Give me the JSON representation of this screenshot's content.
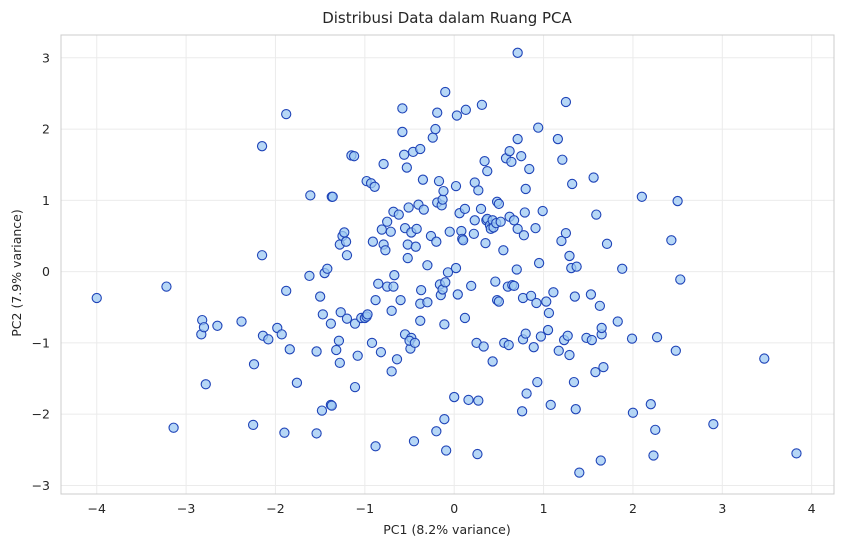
{
  "chart_data": {
    "type": "scatter",
    "title": "Distribusi Data dalam Ruang PCA",
    "xlabel": "PC1 (8.2% variance)",
    "ylabel": "PC2 (7.9% variance)",
    "xlim": [
      -4.4,
      4.25
    ],
    "ylim": [
      -3.12,
      3.32
    ],
    "xticks": [
      -4,
      -3,
      -2,
      -1,
      0,
      1,
      2,
      3,
      4
    ],
    "yticks": [
      -3,
      -2,
      -1,
      0,
      1,
      2,
      3
    ],
    "grid": true,
    "colors": {
      "marker_fill": "#9ec9f3",
      "marker_edge": "#1f44b8",
      "grid": "#ebebeb",
      "spine": "#cccccc"
    },
    "points": [
      [
        -4.0,
        -0.37
      ],
      [
        -3.22,
        -0.21
      ],
      [
        -3.14,
        -2.19
      ],
      [
        -2.82,
        -0.68
      ],
      [
        -2.83,
        -0.88
      ],
      [
        -2.8,
        -0.78
      ],
      [
        -2.78,
        -1.58
      ],
      [
        -2.65,
        -0.76
      ],
      [
        -2.38,
        -0.7
      ],
      [
        -2.24,
        -1.3
      ],
      [
        -2.25,
        -2.15
      ],
      [
        -2.14,
        -0.9
      ],
      [
        -2.15,
        0.23
      ],
      [
        -2.15,
        1.76
      ],
      [
        -2.08,
        -0.95
      ],
      [
        -1.98,
        -0.79
      ],
      [
        -1.93,
        -0.88
      ],
      [
        -1.88,
        -0.27
      ],
      [
        -1.9,
        -2.26
      ],
      [
        -1.88,
        2.21
      ],
      [
        -1.84,
        -1.09
      ],
      [
        -1.76,
        -1.56
      ],
      [
        -1.62,
        -0.06
      ],
      [
        -1.61,
        1.07
      ],
      [
        -1.54,
        -1.12
      ],
      [
        -1.54,
        -2.27
      ],
      [
        -1.5,
        -0.35
      ],
      [
        -1.48,
        -1.95
      ],
      [
        -1.47,
        -0.6
      ],
      [
        -1.45,
        -0.02
      ],
      [
        -1.42,
        0.04
      ],
      [
        -1.38,
        -1.87
      ],
      [
        -1.38,
        -0.73
      ],
      [
        -1.37,
        -1.88
      ],
      [
        -1.37,
        1.05
      ],
      [
        -1.36,
        1.05
      ],
      [
        -1.32,
        -1.1
      ],
      [
        -1.29,
        -0.97
      ],
      [
        -1.28,
        -1.28
      ],
      [
        -1.27,
        -0.57
      ],
      [
        -1.28,
        0.38
      ],
      [
        -1.25,
        0.5
      ],
      [
        -1.23,
        0.55
      ],
      [
        -1.21,
        0.42
      ],
      [
        -1.2,
        0.23
      ],
      [
        -1.2,
        -0.66
      ],
      [
        -1.15,
        1.63
      ],
      [
        -1.12,
        1.62
      ],
      [
        -1.11,
        -0.73
      ],
      [
        -1.11,
        -1.62
      ],
      [
        -1.08,
        -1.18
      ],
      [
        -1.04,
        -0.65
      ],
      [
        -1.0,
        -0.65
      ],
      [
        -0.98,
        -0.63
      ],
      [
        -0.97,
        -0.6
      ],
      [
        -0.98,
        1.27
      ],
      [
        -0.93,
        1.24
      ],
      [
        -0.91,
        0.42
      ],
      [
        -0.92,
        -1.0
      ],
      [
        -0.88,
        -2.45
      ],
      [
        -0.89,
        1.19
      ],
      [
        -0.88,
        -0.4
      ],
      [
        -0.85,
        -0.17
      ],
      [
        -0.82,
        -1.13
      ],
      [
        -0.81,
        0.59
      ],
      [
        -0.79,
        1.51
      ],
      [
        -0.79,
        0.38
      ],
      [
        -0.77,
        0.3
      ],
      [
        -0.75,
        -0.21
      ],
      [
        -0.75,
        0.7
      ],
      [
        -0.71,
        0.56
      ],
      [
        -0.68,
        0.84
      ],
      [
        -0.7,
        -0.55
      ],
      [
        -0.7,
        -1.4
      ],
      [
        -0.68,
        -0.21
      ],
      [
        -0.67,
        -0.05
      ],
      [
        -0.64,
        -1.23
      ],
      [
        -0.62,
        0.8
      ],
      [
        -0.6,
        -0.4
      ],
      [
        -0.58,
        2.29
      ],
      [
        -0.58,
        1.96
      ],
      [
        -0.56,
        1.64
      ],
      [
        -0.55,
        0.61
      ],
      [
        -0.55,
        -0.88
      ],
      [
        -0.52,
        0.38
      ],
      [
        -0.53,
        1.46
      ],
      [
        -0.52,
        0.19
      ],
      [
        -0.51,
        0.9
      ],
      [
        -0.49,
        -1.08
      ],
      [
        -0.48,
        -0.93
      ],
      [
        -0.5,
        -0.97
      ],
      [
        -0.48,
        0.55
      ],
      [
        -0.46,
        1.68
      ],
      [
        -0.45,
        -2.38
      ],
      [
        -0.44,
        -1.0
      ],
      [
        -0.43,
        0.35
      ],
      [
        -0.42,
        0.6
      ],
      [
        -0.4,
        0.94
      ],
      [
        -0.38,
        -0.45
      ],
      [
        -0.38,
        -0.69
      ],
      [
        -0.38,
        1.72
      ],
      [
        -0.37,
        -0.26
      ],
      [
        -0.35,
        1.29
      ],
      [
        -0.34,
        0.87
      ],
      [
        -0.3,
        0.09
      ],
      [
        -0.3,
        -0.43
      ],
      [
        -0.26,
        0.5
      ],
      [
        -0.24,
        1.88
      ],
      [
        -0.21,
        2.0
      ],
      [
        -0.2,
        -2.24
      ],
      [
        -0.2,
        0.42
      ],
      [
        -0.19,
        2.23
      ],
      [
        -0.19,
        0.97
      ],
      [
        -0.17,
        1.27
      ],
      [
        -0.16,
        -0.18
      ],
      [
        -0.14,
        0.93
      ],
      [
        -0.15,
        -0.33
      ],
      [
        -0.13,
        1.01
      ],
      [
        -0.12,
        1.13
      ],
      [
        -0.13,
        -0.25
      ],
      [
        -0.1,
        -0.15
      ],
      [
        -0.11,
        -0.74
      ],
      [
        -0.11,
        -2.07
      ],
      [
        -0.1,
        2.52
      ],
      [
        -0.09,
        -2.51
      ],
      [
        -0.07,
        -0.01
      ],
      [
        -0.05,
        0.56
      ],
      [
        0.02,
        0.05
      ],
      [
        0.0,
        -1.76
      ],
      [
        0.02,
        1.2
      ],
      [
        0.03,
        2.19
      ],
      [
        0.04,
        -0.32
      ],
      [
        0.06,
        0.82
      ],
      [
        0.08,
        0.57
      ],
      [
        0.09,
        0.46
      ],
      [
        0.1,
        0.44
      ],
      [
        0.12,
        0.88
      ],
      [
        0.12,
        -0.65
      ],
      [
        0.13,
        2.27
      ],
      [
        0.16,
        -1.8
      ],
      [
        0.19,
        -0.2
      ],
      [
        0.22,
        0.53
      ],
      [
        0.23,
        0.72
      ],
      [
        0.23,
        1.25
      ],
      [
        0.25,
        -1.0
      ],
      [
        0.26,
        -2.56
      ],
      [
        0.27,
        -1.81
      ],
      [
        0.27,
        1.14
      ],
      [
        0.3,
        0.88
      ],
      [
        0.31,
        2.34
      ],
      [
        0.33,
        -1.05
      ],
      [
        0.34,
        1.55
      ],
      [
        0.35,
        0.4
      ],
      [
        0.36,
        0.72
      ],
      [
        0.37,
        0.74
      ],
      [
        0.37,
        1.41
      ],
      [
        0.4,
        0.65
      ],
      [
        0.41,
        0.6
      ],
      [
        0.43,
        0.72
      ],
      [
        0.43,
        -1.26
      ],
      [
        0.44,
        0.62
      ],
      [
        0.46,
        -0.14
      ],
      [
        0.47,
        0.68
      ],
      [
        0.48,
        -0.4
      ],
      [
        0.48,
        0.98
      ],
      [
        0.5,
        -0.42
      ],
      [
        0.5,
        0.95
      ],
      [
        0.52,
        0.7
      ],
      [
        0.55,
        0.3
      ],
      [
        0.56,
        -1.0
      ],
      [
        0.58,
        1.59
      ],
      [
        0.6,
        -0.21
      ],
      [
        0.61,
        -1.03
      ],
      [
        0.62,
        0.77
      ],
      [
        0.62,
        1.69
      ],
      [
        0.64,
        1.54
      ],
      [
        0.65,
        -0.19
      ],
      [
        0.67,
        0.72
      ],
      [
        0.67,
        -0.2
      ],
      [
        0.7,
        0.03
      ],
      [
        0.71,
        0.6
      ],
      [
        0.71,
        1.86
      ],
      [
        0.71,
        3.07
      ],
      [
        0.75,
        1.62
      ],
      [
        0.76,
        -1.96
      ],
      [
        0.77,
        -0.37
      ],
      [
        0.77,
        -0.95
      ],
      [
        0.78,
        0.51
      ],
      [
        0.79,
        0.83
      ],
      [
        0.8,
        -0.87
      ],
      [
        0.8,
        1.16
      ],
      [
        0.81,
        -1.71
      ],
      [
        0.84,
        1.44
      ],
      [
        0.86,
        -0.34
      ],
      [
        0.89,
        -1.06
      ],
      [
        0.92,
        -0.44
      ],
      [
        0.91,
        0.61
      ],
      [
        0.93,
        -1.55
      ],
      [
        0.94,
        2.02
      ],
      [
        0.95,
        0.12
      ],
      [
        0.97,
        -0.91
      ],
      [
        0.99,
        0.85
      ],
      [
        1.03,
        -0.42
      ],
      [
        1.05,
        -0.82
      ],
      [
        1.06,
        -0.58
      ],
      [
        1.08,
        -1.87
      ],
      [
        1.11,
        -0.29
      ],
      [
        1.16,
        1.86
      ],
      [
        1.17,
        -1.11
      ],
      [
        1.2,
        0.43
      ],
      [
        1.21,
        1.57
      ],
      [
        1.23,
        -0.96
      ],
      [
        1.25,
        0.54
      ],
      [
        1.25,
        2.38
      ],
      [
        1.27,
        -0.9
      ],
      [
        1.29,
        -1.17
      ],
      [
        1.29,
        0.22
      ],
      [
        1.31,
        0.05
      ],
      [
        1.32,
        1.23
      ],
      [
        1.34,
        -1.55
      ],
      [
        1.35,
        -0.35
      ],
      [
        1.36,
        -1.93
      ],
      [
        1.37,
        0.07
      ],
      [
        1.4,
        -2.82
      ],
      [
        1.48,
        -0.93
      ],
      [
        1.53,
        -0.32
      ],
      [
        1.54,
        -0.96
      ],
      [
        1.56,
        1.32
      ],
      [
        1.58,
        -1.41
      ],
      [
        1.59,
        0.8
      ],
      [
        1.63,
        -0.48
      ],
      [
        1.64,
        -2.65
      ],
      [
        1.65,
        -0.88
      ],
      [
        1.65,
        -0.79
      ],
      [
        1.67,
        -1.34
      ],
      [
        1.71,
        0.39
      ],
      [
        1.83,
        -0.7
      ],
      [
        1.88,
        0.04
      ],
      [
        1.99,
        -0.94
      ],
      [
        2.0,
        -1.98
      ],
      [
        2.1,
        1.05
      ],
      [
        2.2,
        -1.86
      ],
      [
        2.23,
        -2.58
      ],
      [
        2.25,
        -2.22
      ],
      [
        2.27,
        -0.92
      ],
      [
        2.43,
        0.44
      ],
      [
        2.48,
        -1.11
      ],
      [
        2.5,
        0.99
      ],
      [
        2.53,
        -0.11
      ],
      [
        2.9,
        -2.14
      ],
      [
        3.47,
        -1.22
      ],
      [
        3.83,
        -2.55
      ]
    ]
  }
}
